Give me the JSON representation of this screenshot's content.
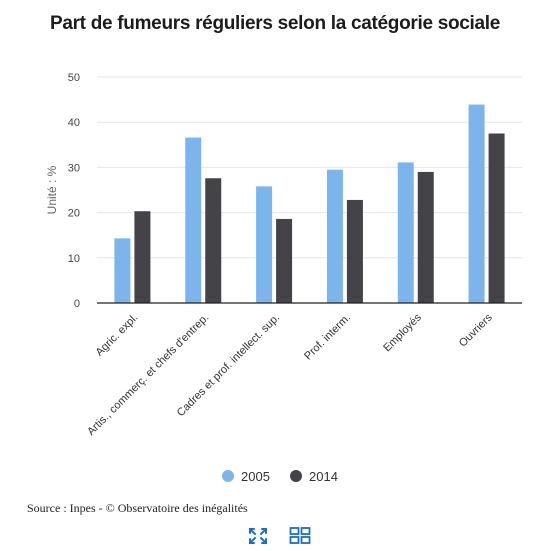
{
  "title": "Part de fumeurs réguliers selon la catégorie sociale",
  "source": "Source : Inpes - © Observatoire des inégalités",
  "colors": {
    "2005": "#7cb5ec",
    "2014": "#434348"
  },
  "toolbar": {
    "expand_icon": "expand-icon",
    "grid_icon": "grid-view-icon"
  },
  "chart_data": {
    "type": "bar",
    "title": "Part de fumeurs réguliers selon la catégorie sociale",
    "ylabel": "Unité : %",
    "xlabel": "",
    "ylim": [
      0,
      50
    ],
    "yticks": [
      0,
      10,
      20,
      30,
      40,
      50
    ],
    "categories": [
      "Agric. expl.",
      "Artis., commerç. et chefs d'entrep.",
      "Cadres et prof. intellect. sup.",
      "Prof. interm.",
      "Employés",
      "Ouvriers"
    ],
    "series": [
      {
        "name": "2005",
        "values": [
          14.3,
          36.6,
          25.8,
          29.5,
          31.1,
          43.9
        ]
      },
      {
        "name": "2014",
        "values": [
          20.3,
          27.6,
          18.6,
          22.8,
          29.0,
          37.5
        ]
      }
    ],
    "grid": true,
    "legend": "bottom-center"
  }
}
